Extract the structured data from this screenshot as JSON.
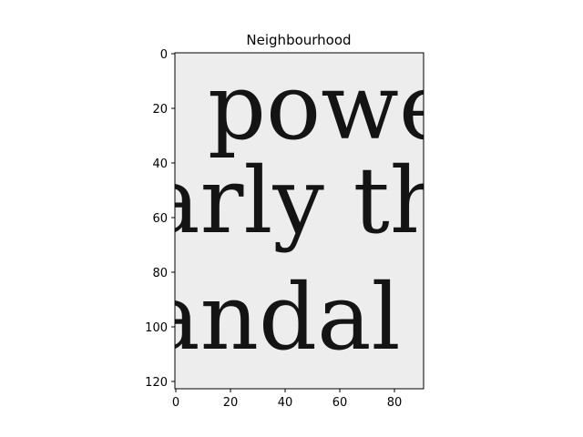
{
  "chart_data": {
    "type": "heatmap",
    "title": "Neighbourhood",
    "xlabel": "",
    "ylabel": "",
    "xlim": [
      0,
      91
    ],
    "ylim": [
      122,
      0
    ],
    "x_ticks": [
      0,
      20,
      40,
      60,
      80
    ],
    "y_ticks": [
      0,
      20,
      40,
      60,
      80,
      100,
      120
    ],
    "grid": false,
    "colormap": "gray",
    "image_content": {
      "description_lines": [
        "powe",
        "arly th",
        "andal"
      ],
      "line_centers": [
        22,
        60,
        100
      ]
    },
    "background_color": "#ededed",
    "ink_color": "#141414"
  },
  "lines": {
    "line1": "powe",
    "line2": "arly th",
    "line3": "andal"
  }
}
